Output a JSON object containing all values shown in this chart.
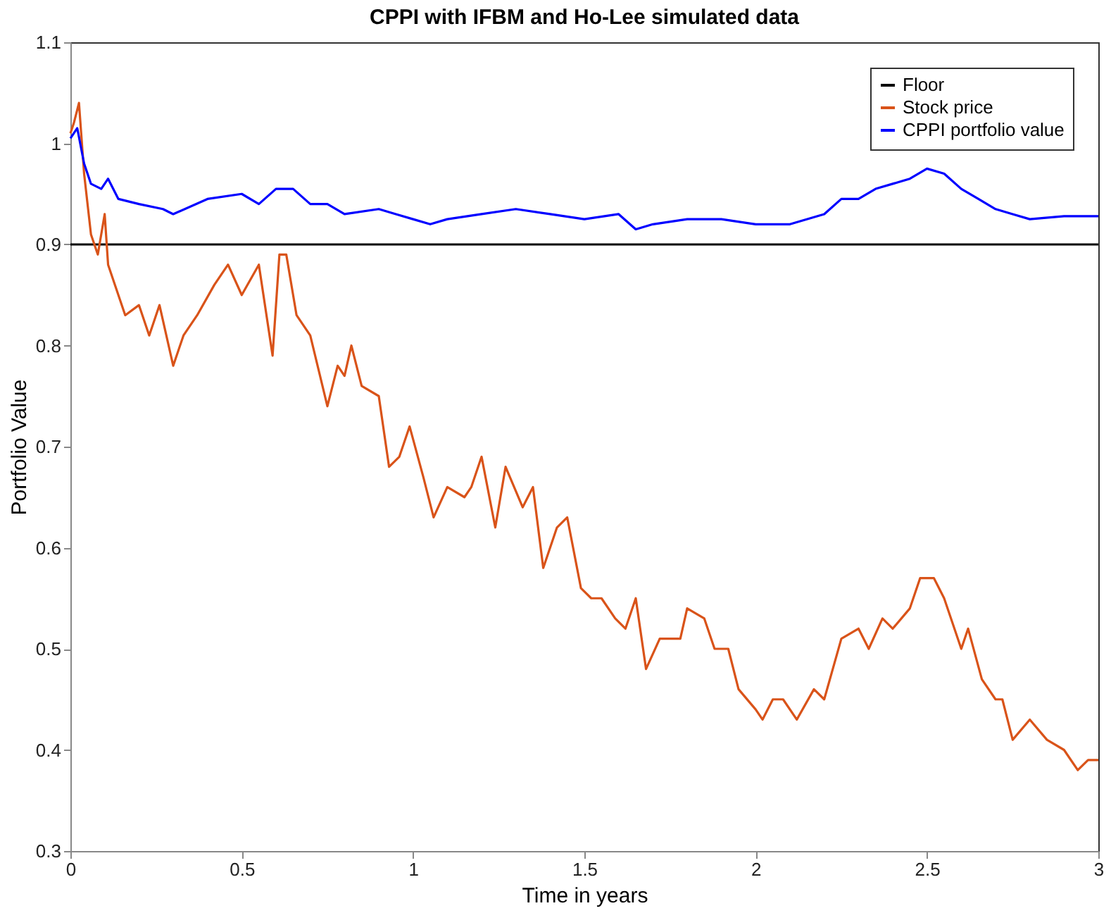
{
  "chart_data": {
    "type": "line",
    "title": "CPPI with IFBM and Ho-Lee simulated data",
    "xlabel": "Time in years",
    "ylabel": "Portfolio Value",
    "xlim": [
      0,
      3
    ],
    "xticks": [
      0,
      0.5,
      1,
      1.5,
      2,
      2.5,
      3
    ],
    "ylim": [
      0.3,
      1.1
    ],
    "yticks": [
      0.3,
      0.4,
      0.5,
      0.6,
      0.7,
      0.8,
      0.9,
      1,
      1.1
    ],
    "grid": false,
    "legend": "top right",
    "line_style": "solid",
    "marker": "none",
    "series": [
      {
        "name": "Floor",
        "color": "#000000",
        "x": [
          0,
          3
        ],
        "values": [
          0.9,
          0.9
        ]
      },
      {
        "name": "Stock price",
        "color": "#d95319",
        "x": [
          0,
          0.01,
          0.025,
          0.04,
          0.06,
          0.08,
          0.1,
          0.11,
          0.13,
          0.16,
          0.2,
          0.23,
          0.26,
          0.3,
          0.33,
          0.37,
          0.42,
          0.46,
          0.5,
          0.55,
          0.59,
          0.61,
          0.63,
          0.66,
          0.7,
          0.75,
          0.78,
          0.8,
          0.82,
          0.85,
          0.9,
          0.93,
          0.96,
          0.99,
          1.03,
          1.06,
          1.1,
          1.15,
          1.17,
          1.2,
          1.24,
          1.27,
          1.32,
          1.35,
          1.38,
          1.42,
          1.45,
          1.49,
          1.52,
          1.55,
          1.59,
          1.62,
          1.65,
          1.68,
          1.72,
          1.78,
          1.8,
          1.85,
          1.88,
          1.92,
          1.95,
          2,
          2.02,
          2.05,
          2.08,
          2.12,
          2.17,
          2.2,
          2.25,
          2.3,
          2.33,
          2.37,
          2.4,
          2.45,
          2.48,
          2.52,
          2.55,
          2.6,
          2.62,
          2.66,
          2.7,
          2.72,
          2.75,
          2.8,
          2.85,
          2.9,
          2.94,
          2.97,
          3
        ],
        "values": [
          1.01,
          1.02,
          1.04,
          0.97,
          0.91,
          0.89,
          0.93,
          0.88,
          0.86,
          0.83,
          0.84,
          0.81,
          0.84,
          0.78,
          0.81,
          0.83,
          0.86,
          0.88,
          0.85,
          0.88,
          0.79,
          0.89,
          0.89,
          0.83,
          0.81,
          0.74,
          0.78,
          0.77,
          0.8,
          0.76,
          0.75,
          0.68,
          0.69,
          0.72,
          0.67,
          0.63,
          0.66,
          0.65,
          0.66,
          0.69,
          0.62,
          0.68,
          0.64,
          0.66,
          0.58,
          0.62,
          0.63,
          0.56,
          0.55,
          0.55,
          0.53,
          0.52,
          0.55,
          0.48,
          0.51,
          0.51,
          0.54,
          0.53,
          0.5,
          0.5,
          0.46,
          0.44,
          0.43,
          0.45,
          0.45,
          0.43,
          0.46,
          0.45,
          0.51,
          0.52,
          0.5,
          0.53,
          0.52,
          0.54,
          0.57,
          0.57,
          0.55,
          0.5,
          0.52,
          0.47,
          0.45,
          0.45,
          0.41,
          0.43,
          0.41,
          0.4,
          0.38,
          0.39,
          0.39
        ]
      },
      {
        "name": "CPPI portfolio value",
        "color": "#0000ff",
        "x": [
          0,
          0.02,
          0.04,
          0.06,
          0.09,
          0.11,
          0.14,
          0.2,
          0.27,
          0.3,
          0.4,
          0.5,
          0.55,
          0.6,
          0.65,
          0.7,
          0.75,
          0.8,
          0.9,
          0.95,
          1,
          1.05,
          1.1,
          1.2,
          1.3,
          1.4,
          1.5,
          1.6,
          1.65,
          1.7,
          1.8,
          1.9,
          2,
          2.1,
          2.2,
          2.25,
          2.3,
          2.35,
          2.4,
          2.45,
          2.5,
          2.55,
          2.6,
          2.65,
          2.7,
          2.75,
          2.8,
          2.9,
          3
        ],
        "values": [
          1.005,
          1.015,
          0.98,
          0.96,
          0.955,
          0.965,
          0.945,
          0.94,
          0.935,
          0.93,
          0.945,
          0.95,
          0.94,
          0.955,
          0.955,
          0.94,
          0.94,
          0.93,
          0.935,
          0.93,
          0.925,
          0.92,
          0.925,
          0.93,
          0.935,
          0.93,
          0.925,
          0.93,
          0.915,
          0.92,
          0.925,
          0.925,
          0.92,
          0.92,
          0.93,
          0.945,
          0.945,
          0.955,
          0.96,
          0.965,
          0.975,
          0.97,
          0.955,
          0.945,
          0.935,
          0.93,
          0.925,
          0.928,
          0.928
        ]
      }
    ]
  }
}
